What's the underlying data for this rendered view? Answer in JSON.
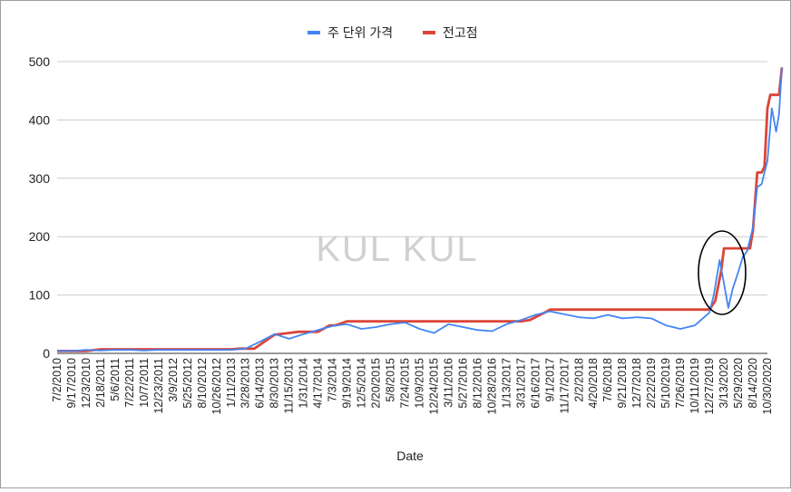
{
  "chart_data": {
    "type": "line",
    "title": "",
    "xlabel": "Date",
    "ylabel": "",
    "ylim": [
      0,
      500
    ],
    "yticks": [
      "0",
      "100",
      "200",
      "300",
      "400",
      "500"
    ],
    "grid": true,
    "legend": "top",
    "watermark": "KUL KUL",
    "annotation": "circle around the 2020-03 price drop",
    "x_tick_labels": [
      "7/2/2010",
      "9/17/2010",
      "12/3/2010",
      "2/18/2011",
      "5/6/2011",
      "7/22/2011",
      "10/7/2011",
      "12/23/2011",
      "3/9/2012",
      "5/25/2012",
      "8/10/2012",
      "10/26/2012",
      "1/11/2013",
      "3/28/2013",
      "6/14/2013",
      "8/30/2013",
      "11/15/2013",
      "1/31/2014",
      "4/17/2014",
      "7/3/2014",
      "9/19/2014",
      "12/5/2014",
      "2/20/2015",
      "5/8/2015",
      "7/24/2015",
      "10/9/2015",
      "12/24/2015",
      "3/11/2016",
      "5/27/2016",
      "8/12/2016",
      "10/28/2016",
      "1/13/2017",
      "3/31/2017",
      "6/16/2017",
      "9/1/2017",
      "11/17/2017",
      "2/2/2018",
      "4/20/2018",
      "7/6/2018",
      "9/21/2018",
      "12/7/2018",
      "2/22/2019",
      "5/10/2019",
      "7/26/2019",
      "10/11/2019",
      "12/27/2019",
      "3/13/2020",
      "5/29/2020",
      "8/14/2020",
      "10/30/2020"
    ],
    "series": [
      {
        "name": "주 단위 가격",
        "color": "#4285f4",
        "x": [
          0,
          1,
          2,
          3,
          4,
          5,
          6,
          7,
          8,
          9,
          10,
          11,
          12,
          13,
          14,
          15,
          16,
          17,
          18,
          19,
          20,
          21,
          22,
          23,
          24,
          25,
          26,
          27,
          28,
          29,
          30,
          31,
          32,
          33,
          34,
          35,
          36,
          37,
          38,
          39,
          40,
          41,
          42,
          43,
          44,
          45,
          45.3,
          45.7,
          46,
          46.3,
          46.6,
          47,
          47.3,
          47.6,
          48,
          48.3,
          48.6,
          49,
          49.3,
          49.6,
          49.8,
          50
        ],
        "values": [
          4,
          4,
          6,
          5,
          6,
          6,
          5,
          6,
          6,
          6,
          6,
          6,
          6,
          8,
          20,
          33,
          25,
          33,
          40,
          47,
          50,
          42,
          45,
          50,
          53,
          42,
          35,
          50,
          45,
          40,
          38,
          50,
          57,
          66,
          72,
          67,
          62,
          60,
          66,
          60,
          62,
          60,
          48,
          42,
          48,
          70,
          100,
          160,
          120,
          78,
          110,
          140,
          165,
          175,
          215,
          285,
          290,
          330,
          420,
          380,
          410,
          490
        ]
      },
      {
        "name": "전고점",
        "color": "#db4437",
        "x": [
          0,
          2,
          3,
          12,
          12.6,
          13.6,
          15,
          16,
          16.6,
          18,
          18.8,
          19.2,
          20,
          32,
          32.6,
          33,
          33.8,
          34,
          45,
          45.4,
          45.8,
          46,
          46.3,
          47.8,
          48,
          48.3,
          48.6,
          48.8,
          49,
          49.2,
          49.4,
          49.6,
          49.8,
          50
        ],
        "values": [
          4,
          4,
          7,
          7,
          8,
          8,
          32,
          35,
          37,
          37,
          48,
          48,
          55,
          55,
          57,
          62,
          72,
          75,
          75,
          90,
          140,
          180,
          180,
          180,
          210,
          310,
          310,
          320,
          420,
          443,
          443,
          443,
          443,
          490
        ]
      }
    ]
  }
}
